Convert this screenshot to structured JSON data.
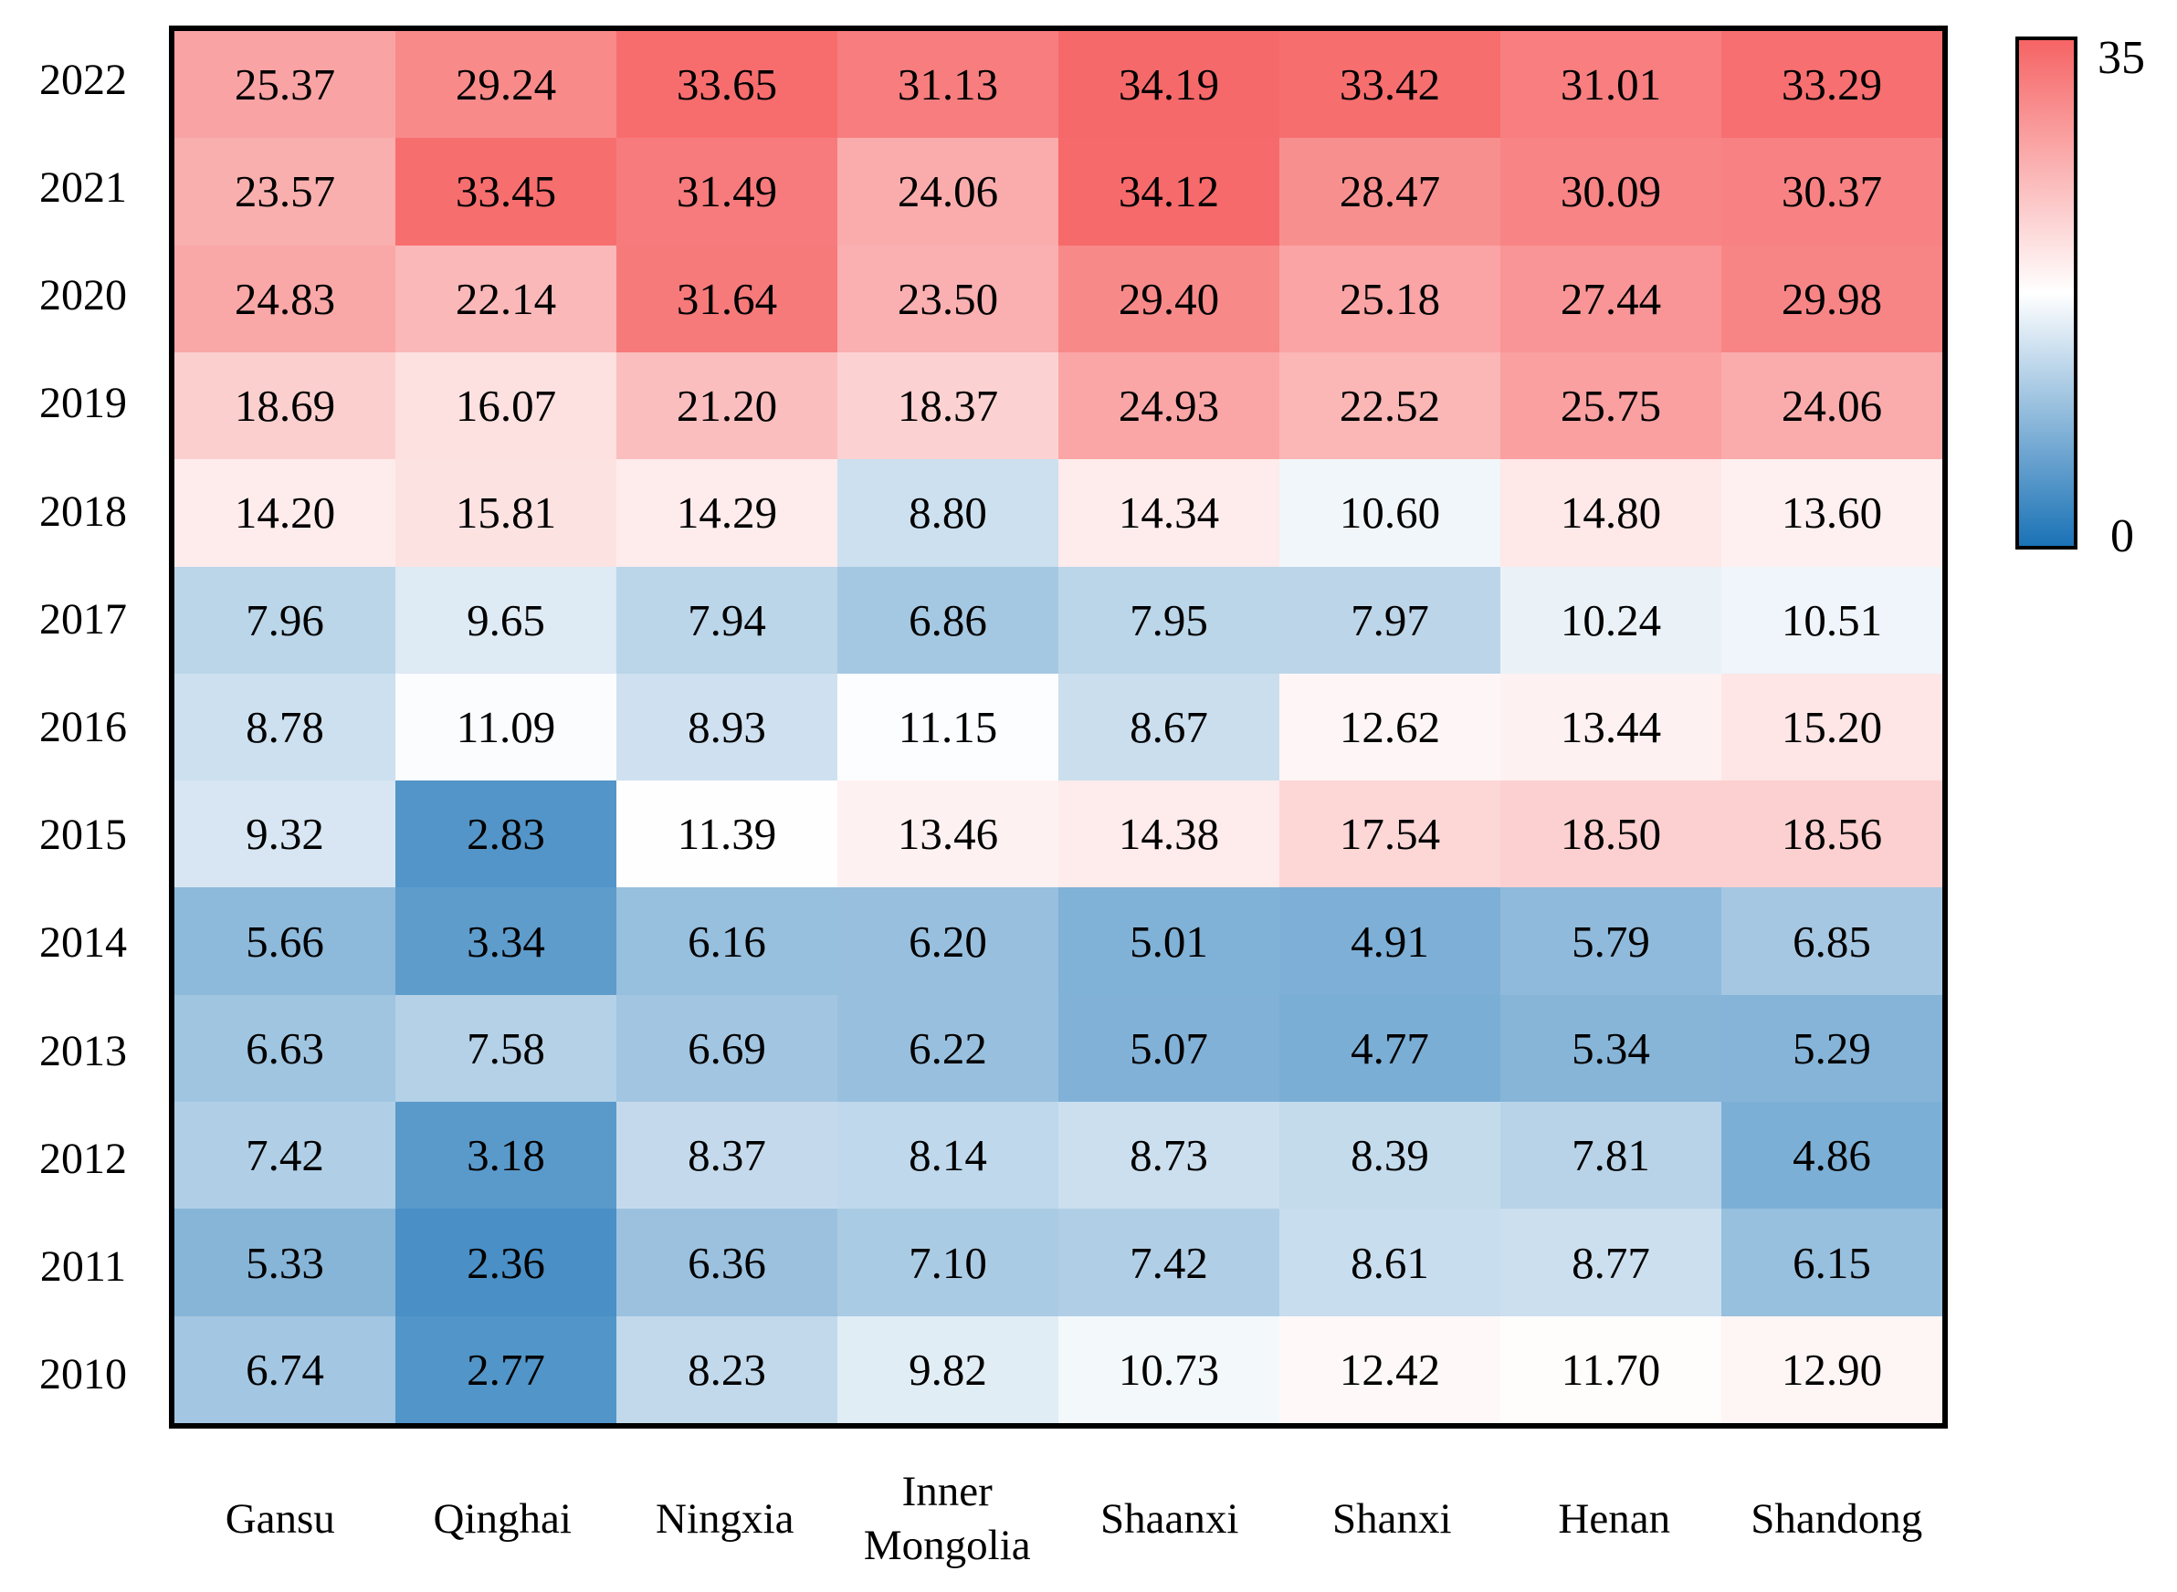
{
  "chart_data": {
    "type": "heatmap",
    "title": "",
    "xlabel": "",
    "ylabel": "",
    "columns": [
      "Gansu",
      "Qinghai",
      "Ningxia",
      "Inner Mongolia",
      "Shaanxi",
      "Shanxi",
      "Henan",
      "Shandong"
    ],
    "rows": [
      "2022",
      "2021",
      "2020",
      "2019",
      "2018",
      "2017",
      "2016",
      "2015",
      "2014",
      "2013",
      "2012",
      "2011",
      "2010"
    ],
    "values": [
      [
        25.37,
        29.24,
        33.65,
        31.13,
        34.19,
        33.42,
        31.01,
        33.29
      ],
      [
        23.57,
        33.45,
        31.49,
        24.06,
        34.12,
        28.47,
        30.09,
        30.37
      ],
      [
        24.83,
        22.14,
        31.64,
        23.5,
        29.4,
        25.18,
        27.44,
        29.98
      ],
      [
        18.69,
        16.07,
        21.2,
        18.37,
        24.93,
        22.52,
        25.75,
        24.06
      ],
      [
        14.2,
        15.81,
        14.29,
        8.8,
        14.34,
        10.6,
        14.8,
        13.6
      ],
      [
        7.96,
        9.65,
        7.94,
        6.86,
        7.95,
        7.97,
        10.24,
        10.51
      ],
      [
        8.78,
        11.09,
        8.93,
        11.15,
        8.67,
        12.62,
        13.44,
        15.2
      ],
      [
        9.32,
        2.83,
        11.39,
        13.46,
        14.38,
        17.54,
        18.5,
        18.56
      ],
      [
        5.66,
        3.34,
        6.16,
        6.2,
        5.01,
        4.91,
        5.79,
        6.85
      ],
      [
        6.63,
        7.58,
        6.69,
        6.22,
        5.07,
        4.77,
        5.34,
        5.29
      ],
      [
        7.42,
        3.18,
        8.37,
        8.14,
        8.73,
        8.39,
        7.81,
        4.86
      ],
      [
        5.33,
        2.36,
        6.36,
        7.1,
        7.42,
        8.61,
        8.77,
        6.15
      ],
      [
        6.74,
        2.77,
        8.23,
        9.82,
        10.73,
        12.42,
        11.7,
        12.9
      ]
    ],
    "value_decimals": 2,
    "colorbar": {
      "min": 0,
      "max": 35,
      "min_label": "0",
      "max_label": "35",
      "position": "right"
    },
    "colormap": {
      "low": "#1a72b6",
      "mid": "#ffffff",
      "high": "#f66465",
      "vmin": 0,
      "white_at": 11.3,
      "vmax": 35
    },
    "grid": false,
    "legend_position": "right"
  }
}
